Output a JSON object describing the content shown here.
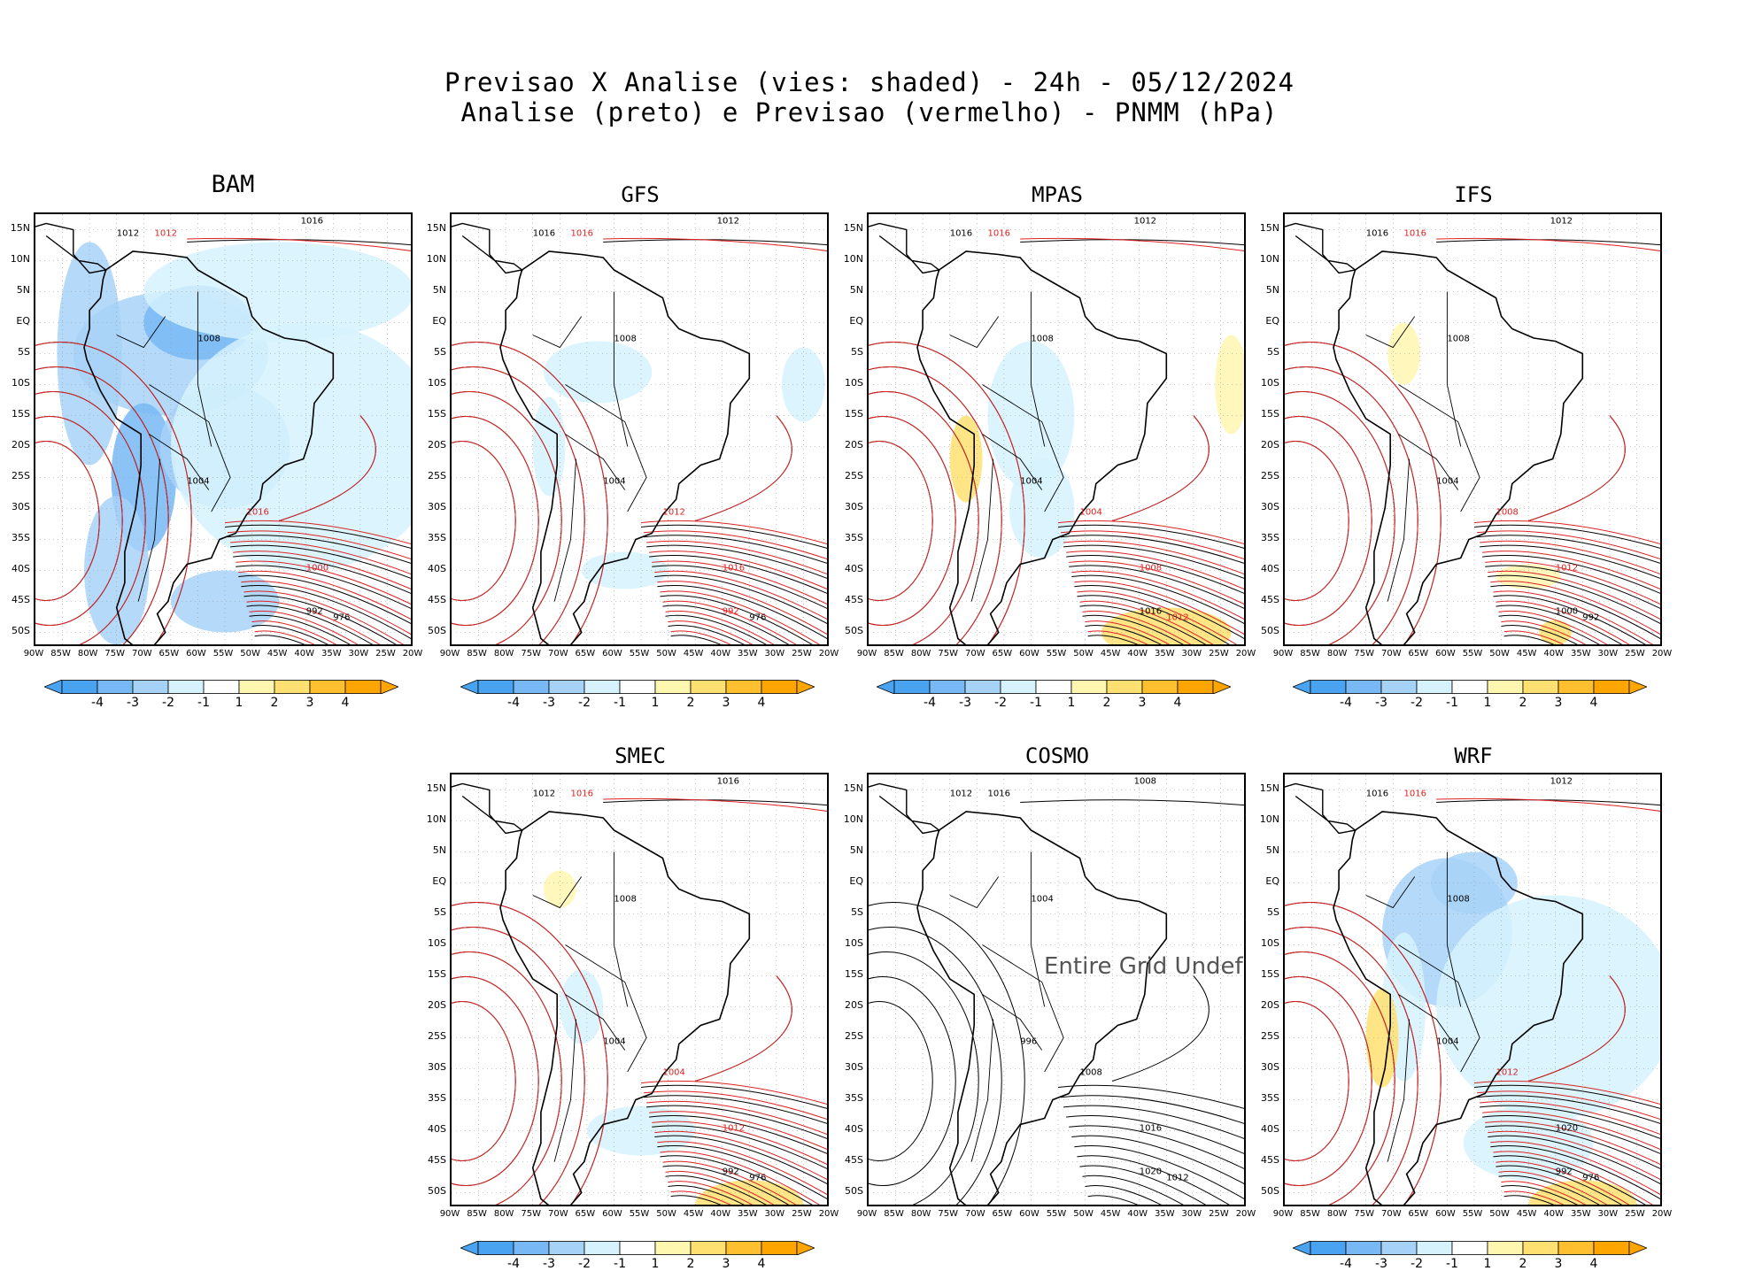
{
  "header": {
    "line1": "Previsao X Analise (vies: shaded) - 24h - 05/12/2024",
    "line2": "Analise (preto) e Previsao (vermelho) - PNMM (hPa)"
  },
  "lat_ticks": [
    "15N",
    "10N",
    "5N",
    "EQ",
    "5S",
    "10S",
    "15S",
    "20S",
    "25S",
    "30S",
    "35S",
    "40S",
    "45S",
    "50S"
  ],
  "lon_ticks": [
    "90W",
    "85W",
    "80W",
    "75W",
    "70W",
    "65W",
    "60W",
    "55W",
    "50W",
    "45W",
    "40W",
    "35W",
    "30W",
    "25W",
    "20W"
  ],
  "colorbar": {
    "ticks": [
      "-4",
      "-3",
      "-2",
      "-1",
      "1",
      "2",
      "3",
      "4"
    ],
    "colors": [
      "#4aa3f0",
      "#78b8f5",
      "#a7d2f8",
      "#d6f2fd",
      "#ffffff",
      "#fff6b0",
      "#ffe070",
      "#ffc030",
      "#ffa500"
    ]
  },
  "panels": [
    {
      "name": "BAM",
      "title": "BAM",
      "labels": [
        {
          "t": "1012",
          "c": "k"
        },
        {
          "t": "1012",
          "c": "r"
        },
        {
          "t": "1016",
          "c": "k"
        },
        {
          "t": "1008",
          "c": "k"
        },
        {
          "t": "1004",
          "c": "k"
        },
        {
          "t": "992",
          "c": "k"
        },
        {
          "t": "976",
          "c": "k"
        },
        {
          "t": "1000",
          "c": "r"
        },
        {
          "t": "1016",
          "c": "r"
        }
      ]
    },
    {
      "name": "GFS",
      "title": "GFS",
      "labels": [
        {
          "t": "1016",
          "c": "k"
        },
        {
          "t": "1016",
          "c": "r"
        },
        {
          "t": "1012",
          "c": "k"
        },
        {
          "t": "1008",
          "c": "k"
        },
        {
          "t": "1004",
          "c": "k"
        },
        {
          "t": "992",
          "c": "r"
        },
        {
          "t": "976",
          "c": "k"
        },
        {
          "t": "1016",
          "c": "r"
        },
        {
          "t": "1012",
          "c": "r"
        }
      ]
    },
    {
      "name": "MPAS",
      "title": "MPAS",
      "labels": [
        {
          "t": "1016",
          "c": "k"
        },
        {
          "t": "1016",
          "c": "r"
        },
        {
          "t": "1012",
          "c": "k"
        },
        {
          "t": "1008",
          "c": "k"
        },
        {
          "t": "1004",
          "c": "k"
        },
        {
          "t": "1016",
          "c": "k"
        },
        {
          "t": "1012",
          "c": "r"
        },
        {
          "t": "1008",
          "c": "r"
        },
        {
          "t": "1004",
          "c": "r"
        }
      ]
    },
    {
      "name": "IFS",
      "title": "IFS",
      "labels": [
        {
          "t": "1016",
          "c": "k"
        },
        {
          "t": "1016",
          "c": "r"
        },
        {
          "t": "1012",
          "c": "k"
        },
        {
          "t": "1008",
          "c": "k"
        },
        {
          "t": "1004",
          "c": "k"
        },
        {
          "t": "1000",
          "c": "k"
        },
        {
          "t": "992",
          "c": "k"
        },
        {
          "t": "1012",
          "c": "r"
        },
        {
          "t": "1008",
          "c": "r"
        }
      ]
    },
    {
      "name": "SMEC",
      "title": "SMEC",
      "labels": [
        {
          "t": "1012",
          "c": "k"
        },
        {
          "t": "1016",
          "c": "r"
        },
        {
          "t": "1016",
          "c": "k"
        },
        {
          "t": "1008",
          "c": "k"
        },
        {
          "t": "1004",
          "c": "k"
        },
        {
          "t": "992",
          "c": "k"
        },
        {
          "t": "976",
          "c": "k"
        },
        {
          "t": "1012",
          "c": "r"
        },
        {
          "t": "1004",
          "c": "r"
        }
      ]
    },
    {
      "name": "COSMO",
      "title": "COSMO",
      "undef": "Entire Grid Undef",
      "labels": [
        {
          "t": "1012",
          "c": "k"
        },
        {
          "t": "1016",
          "c": "k"
        },
        {
          "t": "1008",
          "c": "k"
        },
        {
          "t": "1004",
          "c": "k"
        },
        {
          "t": "996",
          "c": "k"
        },
        {
          "t": "1020",
          "c": "k"
        },
        {
          "t": "1012",
          "c": "k"
        },
        {
          "t": "1016",
          "c": "k"
        },
        {
          "t": "1008",
          "c": "k"
        }
      ]
    },
    {
      "name": "WRF",
      "title": "WRF",
      "labels": [
        {
          "t": "1016",
          "c": "k"
        },
        {
          "t": "1016",
          "c": "r"
        },
        {
          "t": "1012",
          "c": "k"
        },
        {
          "t": "1008",
          "c": "k"
        },
        {
          "t": "1004",
          "c": "k"
        },
        {
          "t": "992",
          "c": "k"
        },
        {
          "t": "976",
          "c": "k"
        },
        {
          "t": "1020",
          "c": "k"
        },
        {
          "t": "1012",
          "c": "r"
        }
      ]
    }
  ]
}
